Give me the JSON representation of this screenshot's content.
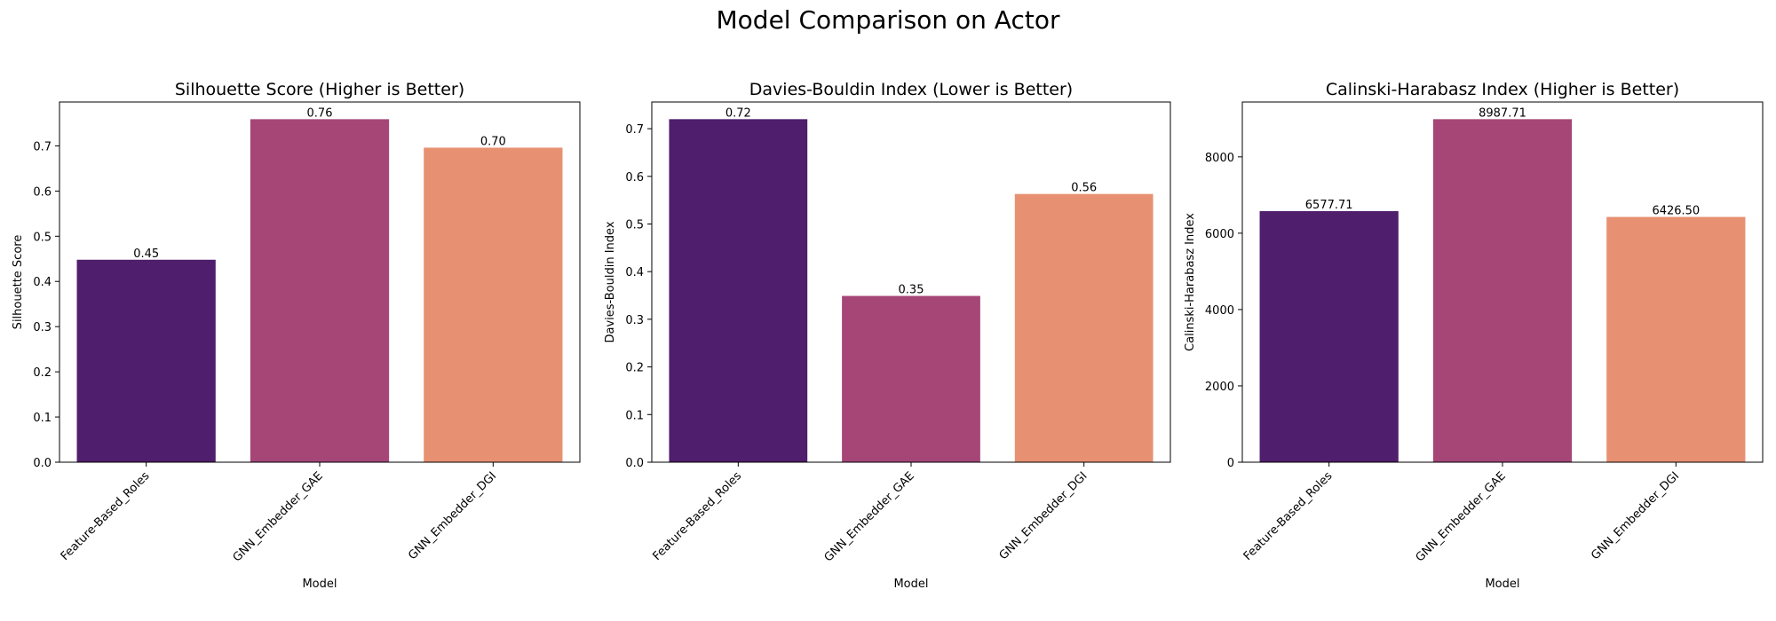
{
  "figure_title": "Model Comparison on Actor",
  "colors": [
    "#4f1e6c",
    "#a54677",
    "#e79172"
  ],
  "chart_data": [
    {
      "type": "bar",
      "title": "Silhouette Score (Higher is Better)",
      "xlabel": "Model",
      "ylabel": "Silhouette Score",
      "categories": [
        "Feature-Based_Roles",
        "GNN_Embedder_GAE",
        "GNN_Embedder_DGI"
      ],
      "values": [
        0.448,
        0.759,
        0.696
      ],
      "value_labels": [
        "0.45",
        "0.76",
        "0.70"
      ],
      "ylim": [
        0,
        0.797
      ],
      "yticks": [
        0.0,
        0.1,
        0.2,
        0.3,
        0.4,
        0.5,
        0.6,
        0.7
      ],
      "ytick_labels": [
        "0.0",
        "0.1",
        "0.2",
        "0.3",
        "0.4",
        "0.5",
        "0.6",
        "0.7"
      ],
      "grid": false,
      "legend": "none"
    },
    {
      "type": "bar",
      "title": "Davies-Bouldin Index (Lower is Better)",
      "xlabel": "Model",
      "ylabel": "Davies-Bouldin Index",
      "categories": [
        "Feature-Based_Roles",
        "GNN_Embedder_GAE",
        "GNN_Embedder_DGI"
      ],
      "values": [
        0.72,
        0.349,
        0.563
      ],
      "value_labels": [
        "0.72",
        "0.35",
        "0.56"
      ],
      "ylim": [
        0,
        0.756
      ],
      "yticks": [
        0.0,
        0.1,
        0.2,
        0.3,
        0.4,
        0.5,
        0.6,
        0.7
      ],
      "ytick_labels": [
        "0.0",
        "0.1",
        "0.2",
        "0.3",
        "0.4",
        "0.5",
        "0.6",
        "0.7"
      ],
      "grid": false,
      "legend": "none"
    },
    {
      "type": "bar",
      "title": "Calinski-Harabasz Index (Higher is Better)",
      "xlabel": "Model",
      "ylabel": "Calinski-Harabasz Index",
      "categories": [
        "Feature-Based_Roles",
        "GNN_Embedder_GAE",
        "GNN_Embedder_DGI"
      ],
      "values": [
        6577.71,
        8987.71,
        6426.5
      ],
      "value_labels": [
        "6577.71",
        "8987.71",
        "6426.50"
      ],
      "ylim": [
        0,
        9437.1
      ],
      "yticks": [
        0,
        2000,
        4000,
        6000,
        8000
      ],
      "ytick_labels": [
        "0",
        "2000",
        "4000",
        "6000",
        "8000"
      ],
      "grid": false,
      "legend": "none"
    }
  ]
}
